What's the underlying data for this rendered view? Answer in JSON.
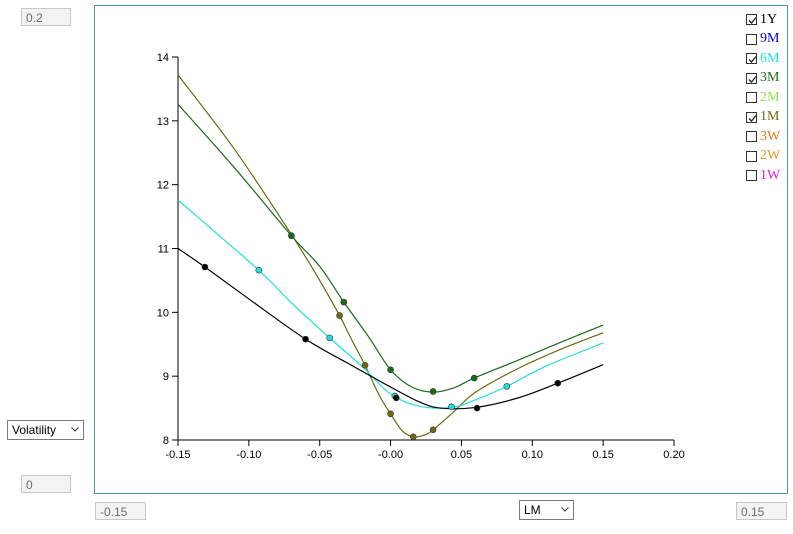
{
  "controls": {
    "ymax_field": "0.2",
    "ymin_field": "0",
    "xmin_field": "-0.15",
    "xmax_field": "0.15",
    "y_measure": "Volatility",
    "x_measure": "LM"
  },
  "legend": [
    {
      "label": "1Y",
      "checked": true,
      "color": "#000000"
    },
    {
      "label": "9M",
      "checked": false,
      "color": "#0000cc"
    },
    {
      "label": "6M",
      "checked": true,
      "color": "#22dddd"
    },
    {
      "label": "3M",
      "checked": true,
      "color": "#1a6b1a"
    },
    {
      "label": "2M",
      "checked": false,
      "color": "#9adf4f"
    },
    {
      "label": "1M",
      "checked": true,
      "color": "#6b6b14"
    },
    {
      "label": "3W",
      "checked": false,
      "color": "#e07a1f"
    },
    {
      "label": "2W",
      "checked": false,
      "color": "#e39a2a"
    },
    {
      "label": "1W",
      "checked": false,
      "color": "#dd22dd"
    }
  ],
  "chart_data": {
    "type": "line",
    "xlim": [
      -0.15,
      0.2
    ],
    "ylim": [
      8,
      14
    ],
    "xticks": [
      "-0.15",
      "-0.10",
      "-0.05",
      "-0.00",
      "0.05",
      "0.10",
      "0.15",
      "0.20"
    ],
    "yticks": [
      "8",
      "9",
      "10",
      "11",
      "12",
      "13",
      "14"
    ],
    "xtick_values": [
      -0.15,
      -0.1,
      -0.05,
      0.0,
      0.05,
      0.1,
      0.15,
      0.2
    ],
    "ytick_values": [
      8,
      9,
      10,
      11,
      12,
      13,
      14
    ],
    "series": [
      {
        "name": "1Y",
        "color": "#000000",
        "curve": [
          [
            -0.15,
            11.0
          ],
          [
            -0.131,
            10.71
          ],
          [
            -0.1,
            10.21
          ],
          [
            -0.06,
            9.58
          ],
          [
            -0.03,
            9.2
          ],
          [
            0.0,
            8.83
          ],
          [
            0.02,
            8.6
          ],
          [
            0.035,
            8.5
          ],
          [
            0.06,
            8.51
          ],
          [
            0.09,
            8.66
          ],
          [
            0.118,
            8.89
          ],
          [
            0.15,
            9.18
          ]
        ],
        "markers": [
          [
            -0.131,
            10.71
          ],
          [
            -0.06,
            9.58
          ],
          [
            0.004,
            8.66
          ],
          [
            0.061,
            8.5
          ],
          [
            0.118,
            8.89
          ]
        ]
      },
      {
        "name": "6M",
        "color": "#22dddd",
        "curve": [
          [
            -0.15,
            11.76
          ],
          [
            -0.093,
            10.66
          ],
          [
            -0.07,
            10.15
          ],
          [
            -0.043,
            9.6
          ],
          [
            -0.02,
            9.15
          ],
          [
            0.0,
            8.72
          ],
          [
            0.02,
            8.53
          ],
          [
            0.043,
            8.51
          ],
          [
            0.06,
            8.63
          ],
          [
            0.082,
            8.84
          ],
          [
            0.11,
            9.16
          ],
          [
            0.15,
            9.52
          ]
        ],
        "markers": [
          [
            -0.093,
            10.66
          ],
          [
            -0.043,
            9.6
          ],
          [
            0.003,
            8.69
          ],
          [
            0.043,
            8.52
          ],
          [
            0.082,
            8.84
          ]
        ]
      },
      {
        "name": "3M",
        "color": "#1a6b1a",
        "curve": [
          [
            -0.15,
            13.26
          ],
          [
            -0.11,
            12.26
          ],
          [
            -0.07,
            11.2
          ],
          [
            -0.05,
            10.72
          ],
          [
            -0.033,
            10.16
          ],
          [
            -0.015,
            9.6
          ],
          [
            0.0,
            9.1
          ],
          [
            0.015,
            8.83
          ],
          [
            0.03,
            8.75
          ],
          [
            0.045,
            8.82
          ],
          [
            0.059,
            8.97
          ],
          [
            0.09,
            9.25
          ],
          [
            0.12,
            9.53
          ],
          [
            0.15,
            9.8
          ]
        ],
        "markers": [
          [
            -0.07,
            11.2
          ],
          [
            -0.033,
            10.16
          ],
          [
            0.0,
            9.1
          ],
          [
            0.03,
            8.76
          ],
          [
            0.059,
            8.97
          ]
        ]
      },
      {
        "name": "1M",
        "color": "#6b6b14",
        "curve": [
          [
            -0.15,
            13.72
          ],
          [
            -0.11,
            12.55
          ],
          [
            -0.07,
            11.22
          ],
          [
            -0.05,
            10.5
          ],
          [
            -0.036,
            9.95
          ],
          [
            -0.027,
            9.55
          ],
          [
            -0.018,
            9.17
          ],
          [
            -0.008,
            8.7
          ],
          [
            0.0,
            8.41
          ],
          [
            0.008,
            8.15
          ],
          [
            0.016,
            8.05
          ],
          [
            0.024,
            8.08
          ],
          [
            0.03,
            8.16
          ],
          [
            0.045,
            8.45
          ],
          [
            0.06,
            8.75
          ],
          [
            0.09,
            9.12
          ],
          [
            0.12,
            9.42
          ],
          [
            0.15,
            9.68
          ]
        ],
        "markers": [
          [
            -0.036,
            9.95
          ],
          [
            -0.018,
            9.17
          ],
          [
            0.0,
            8.41
          ],
          [
            0.016,
            8.05
          ],
          [
            0.03,
            8.16
          ]
        ]
      }
    ]
  }
}
